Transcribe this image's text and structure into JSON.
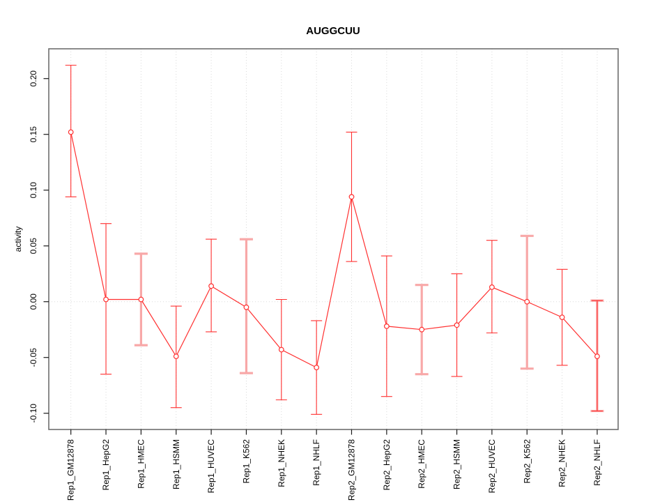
{
  "title": "AUGGCUU",
  "ylabel": "activity",
  "colors": {
    "line": "#ff3030",
    "point_stroke": "#ff3030",
    "point_fill": "#ffffff",
    "thin_bar": "#ff3030",
    "thick_bar": "#f8a8a8",
    "grid": "#d9d9d9",
    "frame": "#6e6e6e",
    "tick": "#1a1a1a",
    "text": "#000000"
  },
  "chart_data": {
    "type": "line",
    "subtype": "points-with-error-bars",
    "title": "AUGGCUU",
    "xlabel": "",
    "ylabel": "activity",
    "ylim": [
      -0.115,
      0.227
    ],
    "yticks": [
      0.2,
      0.15,
      0.1,
      0.05,
      0.0,
      -0.05,
      -0.1
    ],
    "ytick_labels": [
      "0.20",
      "0.15",
      "0.10",
      "0.05",
      "0.00",
      "-0.05",
      "-0.10"
    ],
    "grid": "dotted vertical gridline at each category; dotted horizontal line at y=0",
    "legend": "none",
    "categories": [
      "Rep1_GM12878",
      "Rep1_HepG2",
      "Rep1_HMEC",
      "Rep1_HSMM",
      "Rep1_HUVEC",
      "Rep1_K562",
      "Rep1_NHEK",
      "Rep1_NHLF",
      "Rep2_GM12878",
      "Rep2_HepG2",
      "Rep2_HMEC",
      "Rep2_HSMM",
      "Rep2_HUVEC",
      "Rep2_K562",
      "Rep2_NHEK",
      "Rep2_NHLF"
    ],
    "series": [
      {
        "name": "activity",
        "values": [
          0.152,
          0.002,
          0.002,
          -0.049,
          0.014,
          -0.005,
          -0.043,
          -0.059,
          0.094,
          -0.022,
          -0.025,
          -0.021,
          0.013,
          0.0,
          -0.014,
          -0.049
        ],
        "upper": [
          0.212,
          0.07,
          0.043,
          -0.004,
          0.056,
          0.056,
          0.002,
          -0.017,
          0.152,
          0.041,
          0.015,
          0.025,
          0.055,
          0.059,
          0.029,
          0.001
        ],
        "lower": [
          0.094,
          -0.065,
          -0.039,
          -0.095,
          -0.027,
          -0.064,
          -0.088,
          -0.101,
          0.036,
          -0.085,
          -0.065,
          -0.067,
          -0.028,
          -0.06,
          -0.057,
          -0.098
        ],
        "bar_styles": [
          "thin",
          "thin",
          "thick",
          "thin",
          "thin",
          "thick",
          "thin",
          "thin",
          "thin",
          "thin",
          "thick",
          "thin",
          "thin",
          "thick",
          "thin",
          "both"
        ]
      }
    ]
  }
}
